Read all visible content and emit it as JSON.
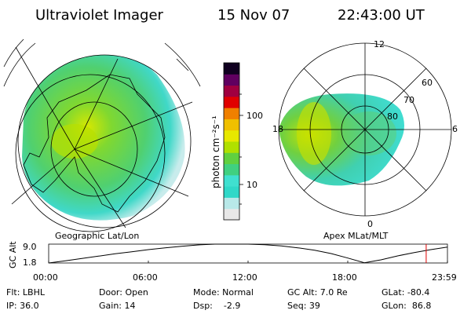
{
  "header": {
    "instrument": "Ultraviolet Imager",
    "date": "15 Nov 07",
    "time": "22:43:00 UT"
  },
  "maps": {
    "left_caption": "Geographic Lat/Lon",
    "right_caption": "Apex MLat/MLT",
    "mlt_labels": [
      "12",
      "18",
      "6",
      "0"
    ],
    "mlat_labels": [
      "60",
      "70",
      "80"
    ]
  },
  "colorbar": {
    "unit_label": "photon cm⁻²s⁻¹",
    "tick_labels": [
      "100",
      "10"
    ],
    "colors": [
      "#e8e8e8",
      "#b8e8e8",
      "#30d8c8",
      "#40e0d0",
      "#40d080",
      "#60d040",
      "#b0e000",
      "#e8e800",
      "#f0c000",
      "#f08000",
      "#e00000",
      "#a00040",
      "#600060",
      "#100020"
    ]
  },
  "altitude_plot": {
    "ylabel": "GC Alt",
    "y_ticks": [
      "9.0",
      "1.8"
    ],
    "x_ticks": [
      "00:00",
      "06:00",
      "12:00",
      "18:00",
      "23:59"
    ]
  },
  "chart_data": {
    "type": "line",
    "title": "",
    "xlabel": "",
    "ylabel": "GC Alt",
    "x": [
      0,
      1,
      2,
      3,
      4,
      5,
      6,
      7,
      8,
      9,
      10,
      11,
      12,
      13,
      14,
      15,
      16,
      17,
      18,
      19,
      20,
      21,
      22,
      23,
      24
    ],
    "values": [
      1.8,
      2.6,
      3.5,
      4.4,
      5.3,
      6.1,
      6.9,
      7.6,
      8.2,
      8.7,
      9.0,
      9.2,
      9.1,
      8.8,
      8.3,
      7.6,
      6.7,
      5.4,
      3.7,
      1.9,
      3.0,
      4.5,
      5.8,
      6.9,
      7.9
    ],
    "ylim": [
      1.8,
      9.0
    ],
    "xlim": [
      0,
      24
    ],
    "current_time_marker": 22.72,
    "marker_color": "#e00000"
  },
  "footer": {
    "rows": [
      [
        "Flt: LBHL",
        "Door: Open",
        "Mode: Normal",
        "GC Alt: 7.0 Re",
        "GLat: -80.4"
      ],
      [
        "IP: 36.0",
        "Gain: 14",
        "Dsp:    -2.9",
        "Seq: 39",
        "GLon:  86.8"
      ]
    ]
  }
}
